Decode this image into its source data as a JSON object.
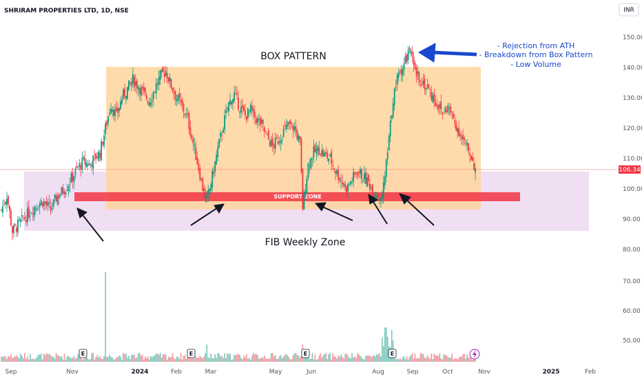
{
  "header": {
    "title": "SHRIRAM PROPERTIES LTD, 1D, NSE",
    "currency": "INR"
  },
  "chart_data": {
    "type": "candlestick",
    "price_axis": {
      "ticks": [
        150,
        140,
        130,
        120,
        110,
        100,
        90,
        80
      ],
      "ylim": [
        78,
        153
      ]
    },
    "volume_axis": {
      "ticks": [
        "70.00",
        "60.00",
        "50.00"
      ]
    },
    "x_axis": {
      "ticks": [
        {
          "label": "Sep",
          "bold": false
        },
        {
          "label": "Nov",
          "bold": false
        },
        {
          "label": "2024",
          "bold": true
        },
        {
          "label": "Feb",
          "bold": false
        },
        {
          "label": "Mar",
          "bold": false
        },
        {
          "label": "May",
          "bold": false
        },
        {
          "label": "Jun",
          "bold": false
        },
        {
          "label": "Aug",
          "bold": false
        },
        {
          "label": "Sep",
          "bold": false
        },
        {
          "label": "Oct",
          "bold": false
        },
        {
          "label": "Nov",
          "bold": false
        },
        {
          "label": "2025",
          "bold": true
        },
        {
          "label": "Feb",
          "bold": false
        }
      ]
    },
    "last_price": "106.34",
    "price_path": [
      [
        0,
        93
      ],
      [
        4,
        98
      ],
      [
        8,
        86
      ],
      [
        12,
        88
      ],
      [
        18,
        91
      ],
      [
        24,
        94
      ],
      [
        30,
        96
      ],
      [
        36,
        93
      ],
      [
        40,
        97
      ],
      [
        44,
        99
      ],
      [
        48,
        101
      ],
      [
        52,
        104
      ],
      [
        56,
        107
      ],
      [
        60,
        109
      ],
      [
        64,
        108
      ],
      [
        68,
        110
      ],
      [
        72,
        112
      ],
      [
        76,
        120
      ],
      [
        80,
        128
      ],
      [
        84,
        124
      ],
      [
        88,
        130
      ],
      [
        92,
        133
      ],
      [
        96,
        136
      ],
      [
        100,
        134
      ],
      [
        104,
        131
      ],
      [
        108,
        129
      ],
      [
        112,
        133
      ],
      [
        116,
        137
      ],
      [
        120,
        139
      ],
      [
        124,
        134
      ],
      [
        128,
        130
      ],
      [
        132,
        127
      ],
      [
        136,
        123
      ],
      [
        140,
        115
      ],
      [
        144,
        107
      ],
      [
        148,
        98
      ],
      [
        150,
        96
      ],
      [
        154,
        104
      ],
      [
        158,
        113
      ],
      [
        162,
        121
      ],
      [
        166,
        128
      ],
      [
        170,
        131
      ],
      [
        174,
        127
      ],
      [
        178,
        124
      ],
      [
        182,
        126
      ],
      [
        186,
        123
      ],
      [
        190,
        121
      ],
      [
        194,
        117
      ],
      [
        198,
        114
      ],
      [
        202,
        116
      ],
      [
        206,
        119
      ],
      [
        210,
        121
      ],
      [
        214,
        120
      ],
      [
        218,
        115
      ],
      [
        220,
        94
      ],
      [
        224,
        108
      ],
      [
        228,
        112
      ],
      [
        232,
        113
      ],
      [
        236,
        111
      ],
      [
        240,
        110
      ],
      [
        244,
        106
      ],
      [
        248,
        103
      ],
      [
        252,
        100
      ],
      [
        256,
        103
      ],
      [
        260,
        106
      ],
      [
        264,
        104
      ],
      [
        268,
        102
      ],
      [
        272,
        99
      ],
      [
        276,
        98
      ],
      [
        278,
        97
      ],
      [
        282,
        112
      ],
      [
        286,
        130
      ],
      [
        290,
        138
      ],
      [
        294,
        141
      ],
      [
        298,
        146
      ],
      [
        302,
        138
      ],
      [
        306,
        136
      ],
      [
        310,
        134
      ],
      [
        314,
        131
      ],
      [
        318,
        128
      ],
      [
        322,
        125
      ],
      [
        326,
        127
      ],
      [
        330,
        123
      ],
      [
        334,
        119
      ],
      [
        338,
        115
      ],
      [
        342,
        112
      ],
      [
        346,
        106.34
      ]
    ],
    "volume_spike": "72.5",
    "earnings_markers": [
      "E",
      "E",
      "E",
      "E"
    ],
    "annotations": {
      "box_pattern": "BOX PATTERN",
      "fib_zone": "FIB Weekly Zone",
      "support_zone": "SUPPORT ZONE",
      "notes": [
        "- Rejection from ATH",
        "- Breakdown from Box Pattern",
        "- Low Volume"
      ]
    }
  },
  "colors": {
    "up": "#089981",
    "down": "#f23645",
    "box": "#ffd59e",
    "fib": "#e1bee7",
    "support": "#f23645",
    "arrow_blue": "#1848cc",
    "arrow_black": "#131722"
  },
  "icons": {
    "lightning": "lightning-icon"
  }
}
